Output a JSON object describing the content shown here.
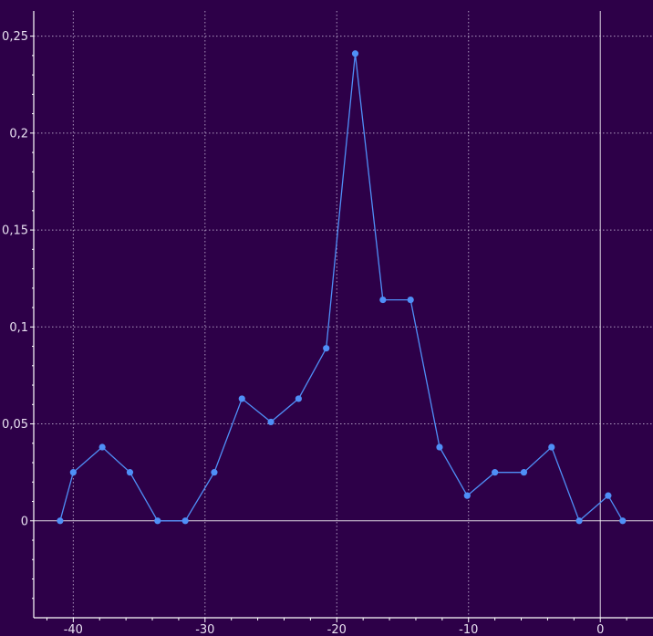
{
  "chart_data": {
    "type": "line",
    "title": "",
    "xlabel": "",
    "ylabel": "",
    "xlim": [
      -43,
      4
    ],
    "ylim": [
      -0.05,
      0.263
    ],
    "grid": true,
    "x_ticks": [
      -40,
      -30,
      -20,
      -10,
      0
    ],
    "x_tick_labels": [
      "-40",
      "-30",
      "-20",
      "-10",
      "0"
    ],
    "y_ticks": [
      0,
      0.05,
      0.1,
      0.15,
      0.2,
      0.25
    ],
    "y_tick_labels": [
      "0",
      "0,05",
      "0,1",
      "0,15",
      "0,2",
      "0,25"
    ],
    "series": [
      {
        "color": "#4f8ff7",
        "x": [
          -41,
          -40,
          -37.8,
          -35.7,
          -33.6,
          -31.5,
          -29.3,
          -27.2,
          -25,
          -22.9,
          -20.8,
          -18.6,
          -16.5,
          -14.4,
          -12.2,
          -10.1,
          -8,
          -5.8,
          -3.7,
          -1.6,
          0.6,
          1.7
        ],
        "values": [
          0,
          0.025,
          0.038,
          0.025,
          0,
          0,
          0.025,
          0.063,
          0.051,
          0.063,
          0.089,
          0.241,
          0.114,
          0.114,
          0.038,
          0.013,
          0.025,
          0.025,
          0.038,
          0,
          0.013,
          0
        ]
      }
    ]
  }
}
